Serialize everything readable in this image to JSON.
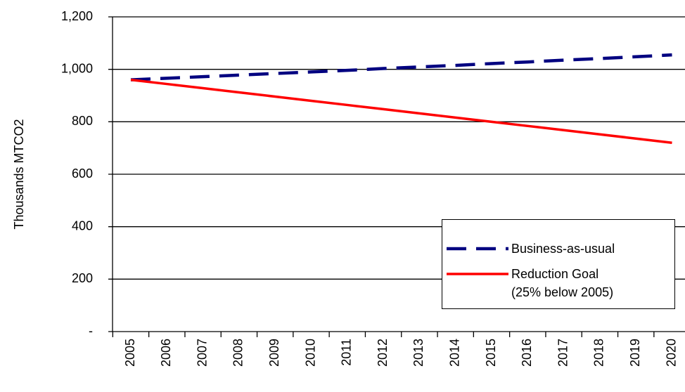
{
  "chart_data": {
    "type": "line",
    "y_label": "Thousands MTCO2",
    "categories": [
      "2005",
      "2006",
      "2007",
      "2008",
      "2009",
      "2010",
      "2011",
      "2012",
      "2013",
      "2014",
      "2015",
      "2016",
      "2017",
      "2018",
      "2019",
      "2020"
    ],
    "series": [
      {
        "name": "Business-as-usual",
        "color": "#000080",
        "dashed": true,
        "values": [
          960,
          966,
          972,
          978,
          984,
          990,
          996,
          1003,
          1009,
          1015,
          1022,
          1028,
          1035,
          1041,
          1048,
          1055
        ]
      },
      {
        "name": "Reduction Goal\n(25% below 2005)",
        "color": "#ff0000",
        "dashed": false,
        "values": [
          960,
          944,
          928,
          912,
          896,
          880,
          864,
          848,
          832,
          816,
          800,
          784,
          768,
          752,
          736,
          720
        ]
      }
    ],
    "ylim": [
      0,
      1200
    ],
    "yticks": [
      {
        "value": 0,
        "label": "-"
      },
      200,
      400,
      600,
      800,
      {
        "value": 1000,
        "label": "1,000"
      },
      {
        "value": 1200,
        "label": "1,200"
      }
    ],
    "grid": true,
    "legend": "lower right"
  }
}
